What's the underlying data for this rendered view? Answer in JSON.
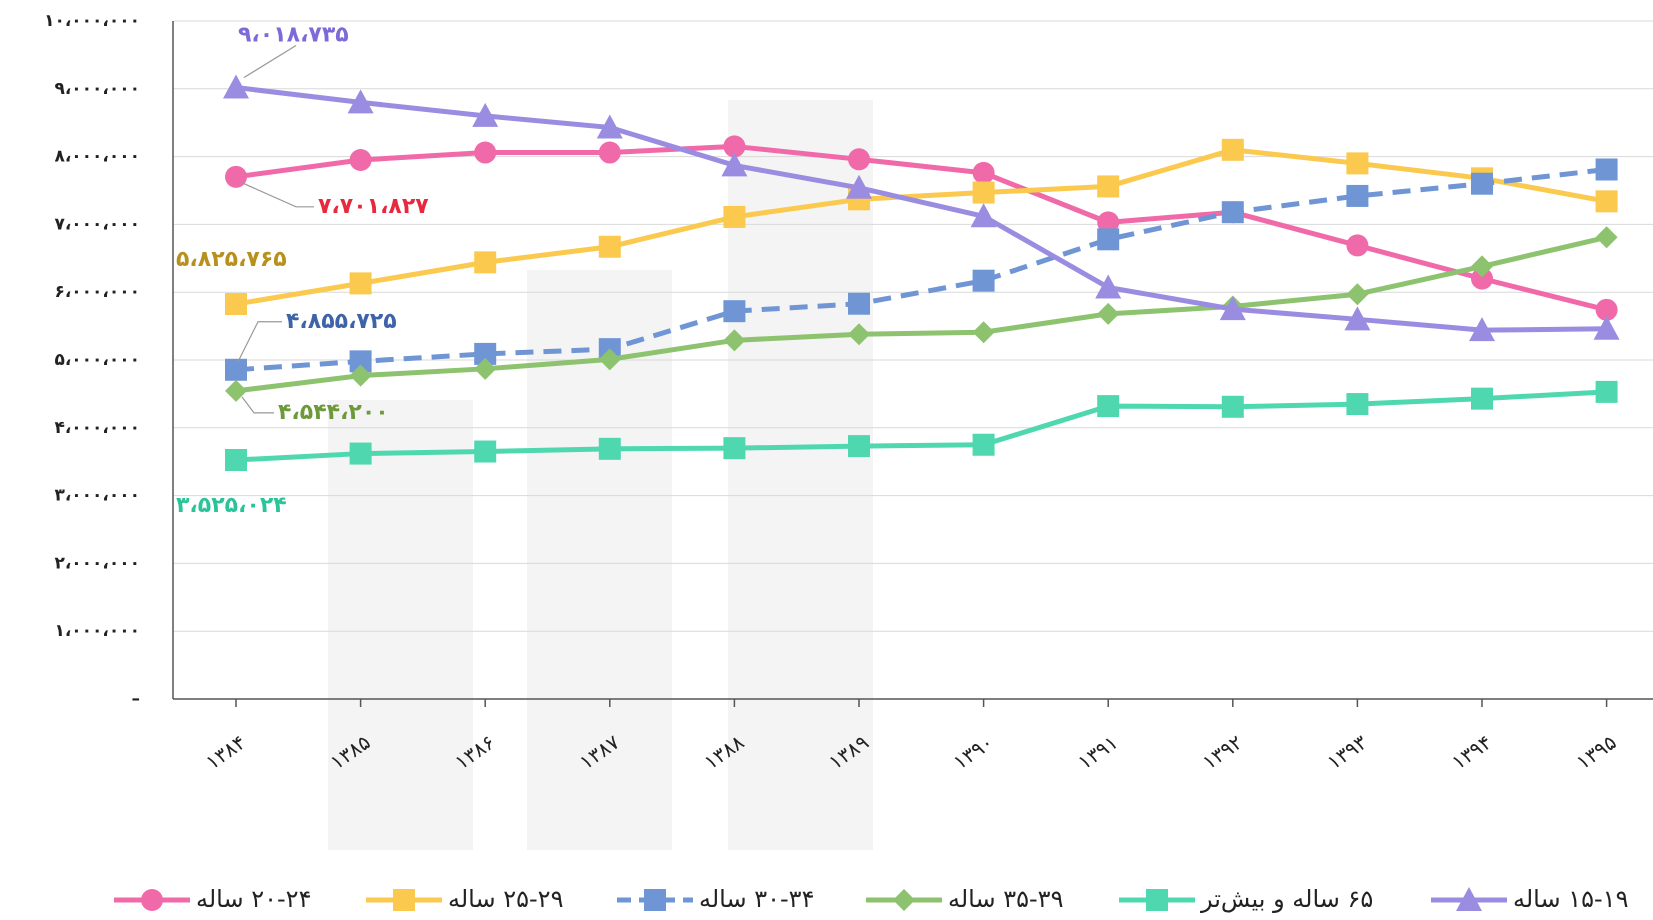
{
  "chart_data": {
    "type": "line",
    "categories": [
      "۱۳۸۴",
      "۱۳۸۵",
      "۱۳۸۶",
      "۱۳۸۷",
      "۱۳۸۸",
      "۱۳۸۹",
      "۱۳۹۰",
      "۱۳۹۱",
      "۱۳۹۲",
      "۱۳۹۳",
      "۱۳۹۴",
      "۱۳۹۵"
    ],
    "ylim": [
      0,
      10000000
    ],
    "yticks": [
      {
        "value": 0,
        "label": "–"
      },
      {
        "value": 1000000,
        "label": "۱،۰۰۰،۰۰۰"
      },
      {
        "value": 2000000,
        "label": "۲،۰۰۰،۰۰۰"
      },
      {
        "value": 3000000,
        "label": "۳،۰۰۰،۰۰۰"
      },
      {
        "value": 4000000,
        "label": "۴،۰۰۰،۰۰۰"
      },
      {
        "value": 5000000,
        "label": "۵،۰۰۰،۰۰۰"
      },
      {
        "value": 6000000,
        "label": "۶،۰۰۰،۰۰۰"
      },
      {
        "value": 7000000,
        "label": "۷،۰۰۰،۰۰۰"
      },
      {
        "value": 8000000,
        "label": "۸،۰۰۰،۰۰۰"
      },
      {
        "value": 9000000,
        "label": "۹،۰۰۰،۰۰۰"
      },
      {
        "value": 10000000,
        "label": "۱۰،۰۰۰،۰۰۰"
      }
    ],
    "grid": true,
    "legend": "bottom",
    "series": [
      {
        "name": "۲۰-۲۴ ساله",
        "color": "#f06aaa",
        "label_color": "#e8283c",
        "marker": "circle",
        "dash": false,
        "values": [
          7701827,
          7950000,
          8060000,
          8060000,
          8150000,
          7960000,
          7760000,
          7030000,
          7180000,
          6690000,
          6200000,
          5740000
        ],
        "value_labels": [
          "۷،۷۰۱،۸۲۷",
          null,
          null,
          null,
          null,
          null,
          null,
          null,
          null,
          null,
          null,
          null
        ]
      },
      {
        "name": "۲۵-۲۹ ساله",
        "color": "#fac94e",
        "label_color": "#b8901c",
        "marker": "square",
        "dash": false,
        "values": [
          5825765,
          6130000,
          6440000,
          6670000,
          7110000,
          7370000,
          7470000,
          7560000,
          8100000,
          7900000,
          7680000,
          7340000
        ],
        "value_labels": [
          "۵،۸۲۵،۷۶۵",
          null,
          null,
          null,
          null,
          null,
          null,
          null,
          null,
          null,
          null,
          null
        ]
      },
      {
        "name": "۳۰-۳۴ ساله",
        "color": "#6f95d4",
        "label_color": "#3e63a8",
        "marker": "square",
        "dash": true,
        "values": [
          4855725,
          4980000,
          5090000,
          5160000,
          5720000,
          5830000,
          6170000,
          6780000,
          7180000,
          7420000,
          7600000,
          7810000
        ],
        "value_labels": [
          "۴،۸۵۵،۷۲۵",
          null,
          null,
          null,
          null,
          null,
          null,
          null,
          null,
          null,
          null,
          null
        ]
      },
      {
        "name": "۳۵-۳۹ ساله",
        "color": "#8dc26e",
        "label_color": "#6c9a3a",
        "marker": "diamond",
        "dash": false,
        "values": [
          4544200,
          4770000,
          4870000,
          5010000,
          5290000,
          5380000,
          5410000,
          5680000,
          5790000,
          5970000,
          6380000,
          6810000
        ],
        "value_labels": [
          "۴،۵۴۴،۲۰۰",
          null,
          null,
          null,
          null,
          null,
          null,
          null,
          null,
          null,
          null,
          null
        ]
      },
      {
        "name": "۶۵ ساله و بیش‌تر",
        "color": "#4fd8b0",
        "label_color": "#2bc49a",
        "marker": "square",
        "dash": false,
        "values": [
          3525024,
          3620000,
          3650000,
          3690000,
          3700000,
          3730000,
          3750000,
          4320000,
          4310000,
          4350000,
          4430000,
          4530000
        ],
        "value_labels": [
          "۳،۵۲۵،۰۲۴",
          null,
          null,
          null,
          null,
          null,
          null,
          null,
          null,
          null,
          null,
          null
        ]
      },
      {
        "name": "۱۵-۱۹ ساله",
        "color": "#9a8ce0",
        "label_color": "#7b6ad8",
        "marker": "triangle",
        "dash": false,
        "values": [
          9018735,
          8800000,
          8600000,
          8430000,
          7870000,
          7540000,
          7120000,
          6070000,
          5750000,
          5600000,
          5440000,
          5460000
        ],
        "value_labels": [
          "۹،۰۱۸،۷۳۵",
          null,
          null,
          null,
          null,
          null,
          null,
          null,
          null,
          null,
          null,
          null
        ]
      }
    ]
  }
}
